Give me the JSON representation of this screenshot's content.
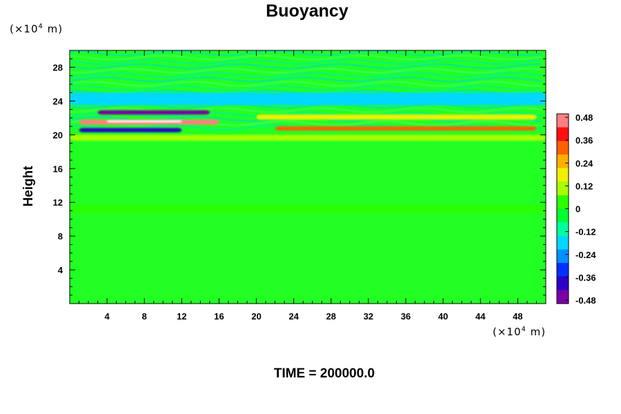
{
  "chart_data": {
    "type": "heatmap",
    "title": "Buoyancy",
    "ylabel": "Height",
    "x_unit": "(×10",
    "x_unit_exp": "4",
    "x_unit_tail": " m)",
    "y_unit": "(×10",
    "y_unit_exp": "4",
    "y_unit_tail": " m)",
    "x_ticks": [
      "4",
      "8",
      "12",
      "16",
      "20",
      "24",
      "28",
      "32",
      "36",
      "40",
      "44",
      "48"
    ],
    "y_ticks": [
      "4",
      "8",
      "12",
      "16",
      "20",
      "24",
      "28"
    ],
    "xlim": [
      0,
      51
    ],
    "ylim": [
      0,
      30
    ],
    "colorbar_ticks": [
      "0.48",
      "0.36",
      "0.24",
      "0.12",
      "0",
      "-0.12",
      "-0.24",
      "-0.36",
      "-0.48"
    ],
    "colorbar_range": [
      -0.48,
      0.48
    ],
    "colormap": [
      "#7a00a6",
      "#2b00c8",
      "#0030ff",
      "#0090ff",
      "#00d8ff",
      "#00ffa0",
      "#00ff30",
      "#2cff00",
      "#a8ff00",
      "#f0f000",
      "#ffb000",
      "#ff6000",
      "#ff1010",
      "#ff8080"
    ],
    "field_background": "#22ff22",
    "features": [
      {
        "name": "band-warm-left",
        "x": [
          1,
          16
        ],
        "y": [
          21.2,
          21.8
        ],
        "value": 0.44
      },
      {
        "name": "band-cold-left",
        "x": [
          3,
          15
        ],
        "y": [
          22.4,
          22.9
        ],
        "value": -0.42
      },
      {
        "name": "band-cold-lower",
        "x": [
          1,
          12
        ],
        "y": [
          20.3,
          20.8
        ],
        "value": -0.4
      },
      {
        "name": "band-warm-right",
        "x": [
          22,
          50
        ],
        "y": [
          20.5,
          21.0
        ],
        "value": 0.34
      },
      {
        "name": "band-yellow-right",
        "x": [
          20,
          50
        ],
        "y": [
          21.8,
          22.4
        ],
        "value": 0.18
      },
      {
        "name": "band-cyan-upper",
        "x": [
          0,
          51
        ],
        "y": [
          23.5,
          25.0
        ],
        "value": -0.2
      },
      {
        "name": "band-yellow-base",
        "x": [
          0,
          51
        ],
        "y": [
          19.3,
          20.0
        ],
        "value": 0.1
      },
      {
        "name": "band-faint-mid",
        "x": [
          0,
          51
        ],
        "y": [
          10.8,
          11.6
        ],
        "value": 0.05
      }
    ]
  },
  "footer": {
    "time_label": "TIME = 200000.0"
  }
}
